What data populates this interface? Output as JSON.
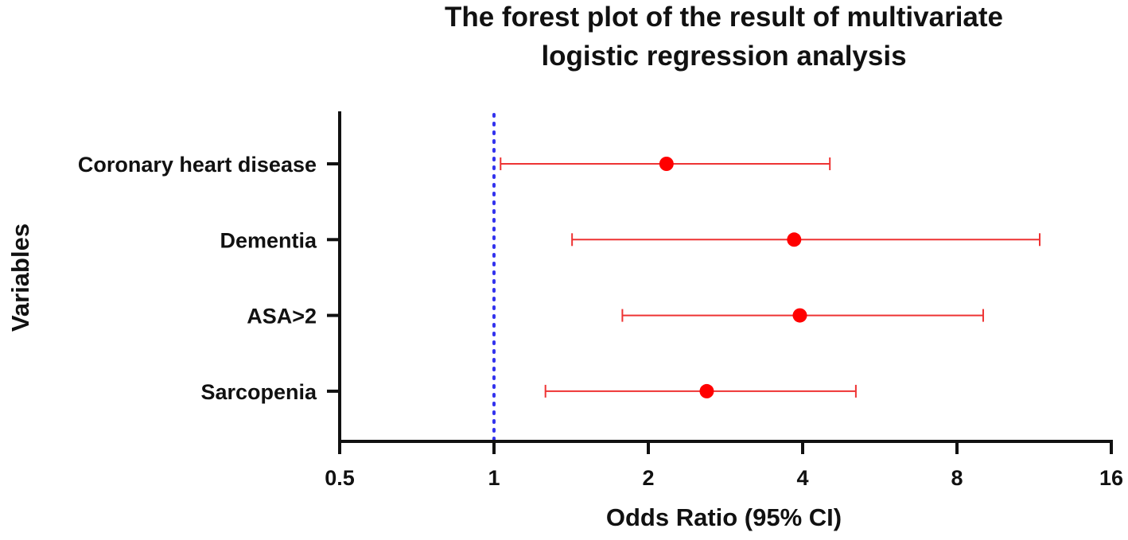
{
  "chart_data": {
    "type": "scatter",
    "title": [
      "The forest plot of the result of multivariate",
      "logistic regression analysis"
    ],
    "xlabel": "Odds Ratio (95% CI)",
    "ylabel": "Variables",
    "x_scale": "log2",
    "xlim": [
      0.5,
      16
    ],
    "x_ticks": [
      0.5,
      1,
      2,
      4,
      8,
      16
    ],
    "x_tick_labels": [
      "0.5",
      "1",
      "2",
      "4",
      "8",
      "16"
    ],
    "reference_line": {
      "x": 1,
      "style": "dotted",
      "color": "#3333ee"
    },
    "categories": [
      "Coronary heart disease",
      "Dementia",
      "ASA>2",
      "Sarcopenia"
    ],
    "or": [
      2.17,
      3.85,
      3.95,
      2.6
    ],
    "ci_lower": [
      1.03,
      1.42,
      1.78,
      1.26
    ],
    "ci_upper": [
      4.52,
      11.6,
      9.0,
      5.08
    ],
    "colors": {
      "point": "#ff0000",
      "ci": "#ee3333",
      "axis": "#111111"
    },
    "grid": false,
    "legend": "none"
  }
}
